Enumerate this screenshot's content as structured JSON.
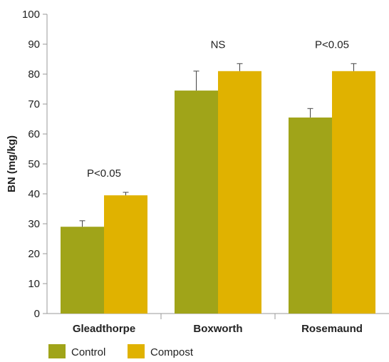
{
  "chart_data": {
    "type": "bar",
    "title": "",
    "xlabel": "",
    "ylabel": "BN (mg/kg)",
    "ylim": [
      0,
      100
    ],
    "yticks": [
      0,
      10,
      20,
      30,
      40,
      50,
      60,
      70,
      80,
      90,
      100
    ],
    "categories": [
      "Gleadthorpe",
      "Boxworth",
      "Rosemaund"
    ],
    "series": [
      {
        "name": "Control",
        "color": "#a0a419",
        "values": [
          29,
          74.5,
          65.5
        ],
        "error_upper": [
          31,
          81,
          68.5
        ]
      },
      {
        "name": "Compost",
        "color": "#e0b200",
        "values": [
          39.5,
          81,
          81
        ],
        "error_upper": [
          40.5,
          83.5,
          83.5
        ]
      }
    ],
    "annotations": [
      "P<0.05",
      "NS",
      "P<0.05"
    ],
    "grid": false,
    "legend_position": "bottom-left",
    "error_bars": "upper only"
  }
}
